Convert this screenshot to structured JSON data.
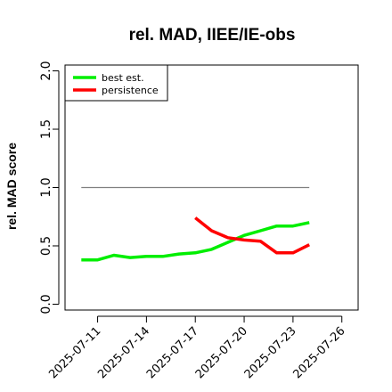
{
  "chart_data": {
    "type": "line",
    "title": "rel. MAD, IIEE/IE-obs",
    "xlabel": "",
    "ylabel": "rel. MAD score",
    "x_ticks": [
      "2025-07-11",
      "2025-07-14",
      "2025-07-17",
      "2025-07-20",
      "2025-07-23",
      "2025-07-26"
    ],
    "x": [
      "2025-07-10",
      "2025-07-11",
      "2025-07-12",
      "2025-07-13",
      "2025-07-14",
      "2025-07-15",
      "2025-07-16",
      "2025-07-17",
      "2025-07-18",
      "2025-07-19",
      "2025-07-20",
      "2025-07-21",
      "2025-07-22",
      "2025-07-23",
      "2025-07-24"
    ],
    "xlim": [
      "2025-07-09",
      "2025-07-27"
    ],
    "ylim": [
      -0.05,
      2.05
    ],
    "y_ticks": [
      "0.0",
      "0.5",
      "1.0",
      "1.5",
      "2.0"
    ],
    "grid": false,
    "legend_position": "top-left",
    "series": [
      {
        "name": "best est.",
        "color": "#00ee00",
        "values": [
          0.38,
          0.38,
          0.42,
          0.4,
          0.41,
          0.41,
          0.43,
          0.44,
          0.47,
          0.53,
          0.59,
          0.63,
          0.67,
          0.67,
          0.7
        ]
      },
      {
        "name": "persistence",
        "color": "#ff0000",
        "values": [
          null,
          null,
          null,
          null,
          null,
          null,
          null,
          0.74,
          0.63,
          0.57,
          0.55,
          0.54,
          0.44,
          0.44,
          0.51
        ]
      }
    ],
    "reference_line": {
      "y": 1.0,
      "from": "2025-07-10",
      "to": "2025-07-24",
      "color": "#808080"
    }
  }
}
